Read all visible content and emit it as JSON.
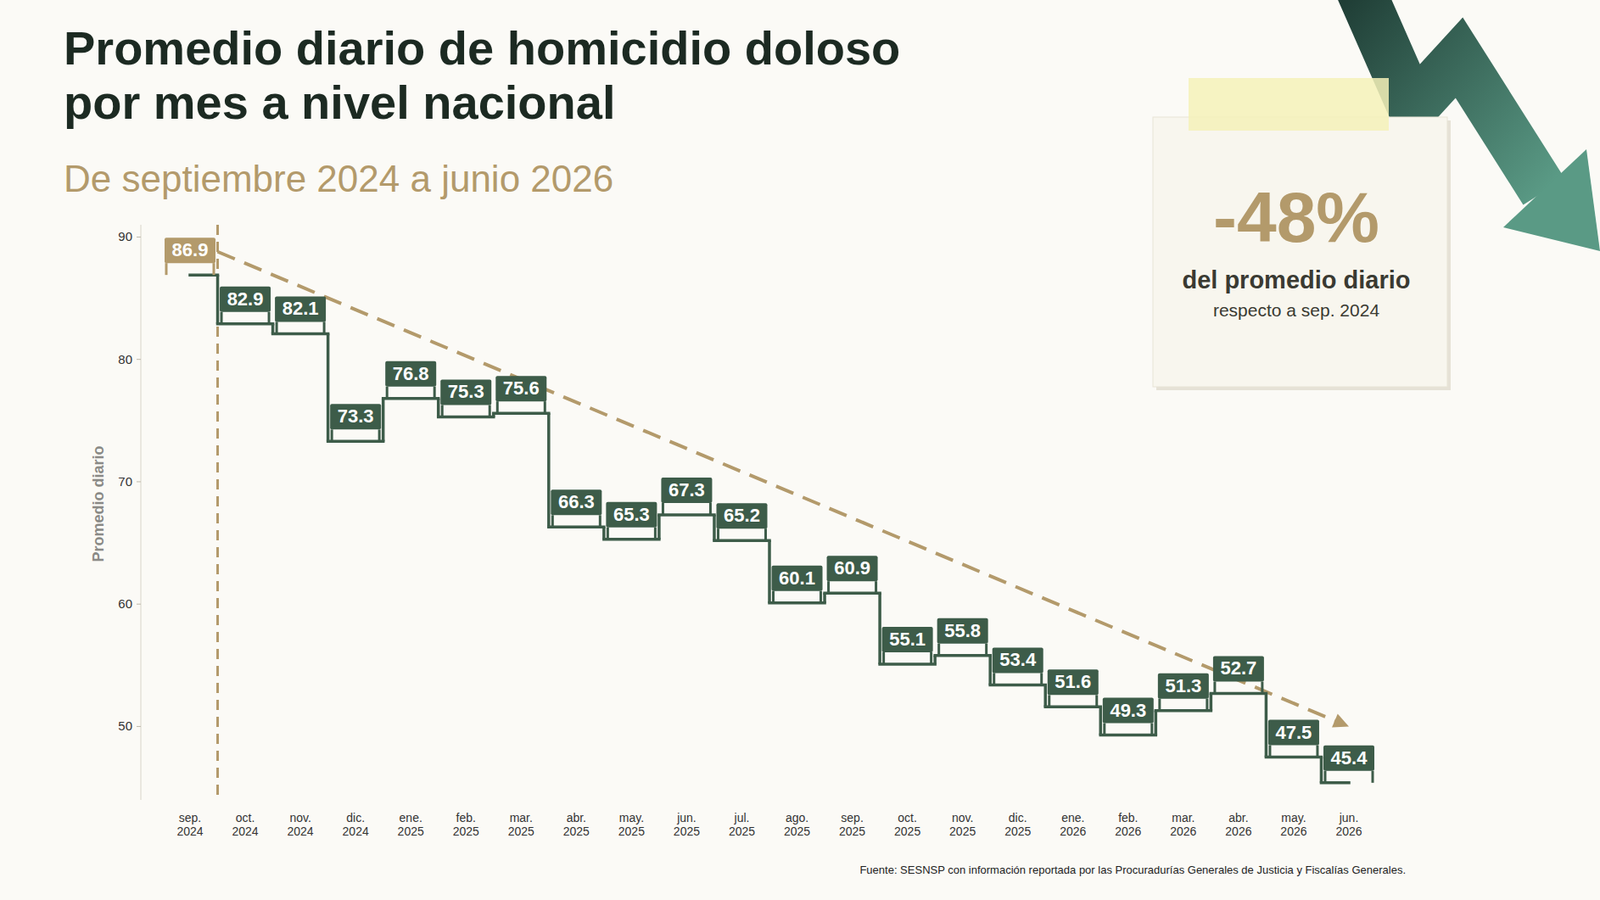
{
  "chart_data": {
    "type": "line",
    "line_style": "step",
    "title": "Promedio diario de homicidio doloso\npor mes a nivel nacional",
    "subtitle": "De septiembre 2024 a junio 2026",
    "y_label": "Promedio diario",
    "categories": [
      "sep. 2024",
      "oct. 2024",
      "nov. 2024",
      "dic. 2024",
      "ene. 2025",
      "feb. 2025",
      "mar. 2025",
      "abr. 2025",
      "may. 2025",
      "jun. 2025",
      "jul. 2025",
      "ago. 2025",
      "sep. 2025",
      "oct. 2025",
      "nov. 2025",
      "dic. 2025",
      "ene. 2026",
      "feb. 2026",
      "mar. 2026",
      "abr. 2026",
      "may. 2026",
      "jun. 2026"
    ],
    "values": [
      86.9,
      82.9,
      82.1,
      73.3,
      76.8,
      75.3,
      75.6,
      66.3,
      65.3,
      67.3,
      65.2,
      60.1,
      60.9,
      55.1,
      55.8,
      53.4,
      51.6,
      49.3,
      51.3,
      52.7,
      47.5,
      45.4
    ],
    "color": "#3d5c49",
    "colors": [
      "#b39a6b",
      "#3d5c49",
      "#3d5c49",
      "#3d5c49",
      "#3d5c49",
      "#3d5c49",
      "#3d5c49",
      "#3d5c49",
      "#3d5c49",
      "#3d5c49",
      "#3d5c49",
      "#3d5c49",
      "#3d5c49",
      "#3d5c49",
      "#3d5c49",
      "#3d5c49",
      "#3d5c49",
      "#3d5c49",
      "#3d5c49",
      "#3d5c49",
      "#3d5c49",
      "#3d5c49"
    ],
    "data_labels": true,
    "grid": false,
    "ylim": [
      44,
      91
    ],
    "yticks": [
      50,
      60,
      70,
      80,
      90
    ],
    "trend": [
      88.8,
      50.0
    ],
    "annotation": {
      "headline": "-48%",
      "text": "del promedio diario",
      "subtext": "respecto a sep. 2024"
    },
    "source": "Fuente: SESNSP con información reportada por las Procuradurías Generales de Justicia y Fiscalías Generales."
  }
}
